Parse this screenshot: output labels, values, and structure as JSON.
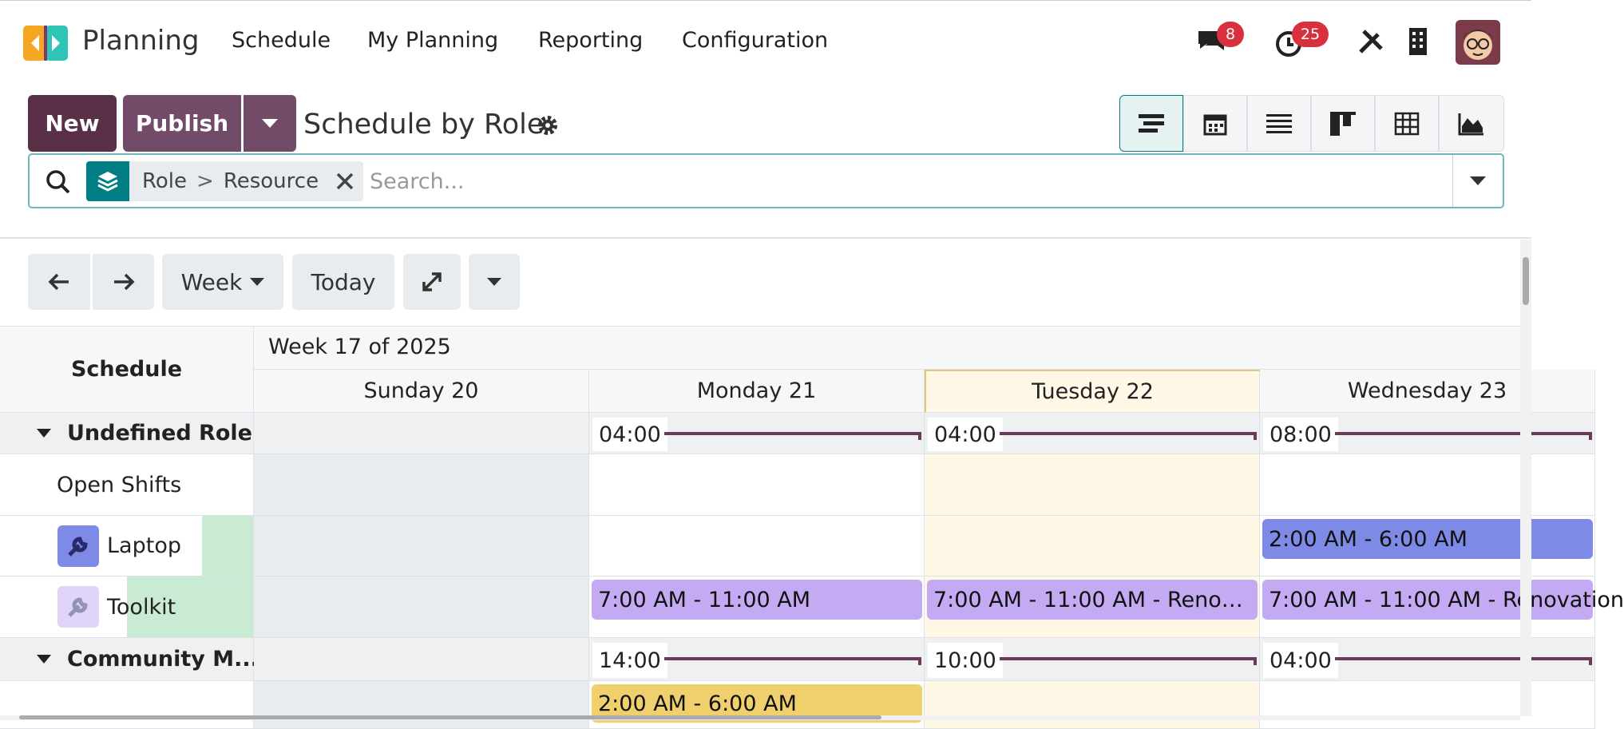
{
  "navbar": {
    "app_name": "Planning",
    "menu": [
      "Schedule",
      "My Planning",
      "Reporting",
      "Configuration"
    ],
    "messages_badge": "8",
    "activities_badge": "25"
  },
  "control_panel": {
    "new_button": "New",
    "publish_button": "Publish",
    "title": "Schedule by Role",
    "facet": {
      "values": [
        "Role",
        "Resource"
      ],
      "separator": ">"
    },
    "search_placeholder": "Search..."
  },
  "toolbar": {
    "scale": "Week",
    "today": "Today"
  },
  "gantt": {
    "corner": "Schedule",
    "period": "Week 17 of 2025",
    "days": [
      "Sunday 20",
      "Monday 21",
      "Tuesday 22",
      "Wednesday 23"
    ],
    "rows": [
      {
        "label": "Undefined Role",
        "group": true,
        "cells": [
          null,
          "04:00",
          "04:00",
          "08:00"
        ]
      },
      {
        "label": "Open Shifts",
        "cells": [
          null,
          null,
          null,
          null
        ]
      },
      {
        "label": "Laptop",
        "icon": "wrench",
        "color": "#7d8ae6",
        "cells": [
          null,
          null,
          null,
          "2:00 AM - 6:00 AM"
        ]
      },
      {
        "label": "Toolkit",
        "icon": "wrench",
        "color": "#c3aaf2",
        "cells": [
          null,
          "7:00 AM - 11:00 AM",
          "7:00 AM - 11:00 AM - Reno…",
          "7:00 AM - 11:00 AM - Renovation"
        ]
      },
      {
        "label": "Community M...",
        "group": true,
        "cells": [
          null,
          "14:00",
          "10:00",
          "04:00"
        ]
      },
      {
        "color": "#f0d06c",
        "cells": [
          null,
          "2:00 AM - 6:00 AM",
          null,
          null
        ]
      }
    ]
  }
}
